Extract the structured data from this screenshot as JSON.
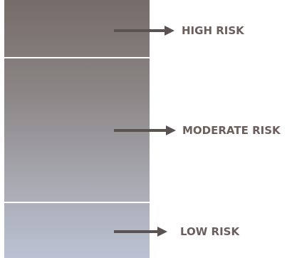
{
  "levels": [
    {
      "label": "HIGH RISK"
    },
    {
      "label": "MODERATE RISK"
    },
    {
      "label": "LOW RISK"
    }
  ],
  "colors": {
    "bar_top": "#766c69",
    "bar_bottom": "#bcc2d3",
    "arrow": "#5b5352",
    "label_text": "#6b5f5d",
    "divider": "#ffffff"
  }
}
